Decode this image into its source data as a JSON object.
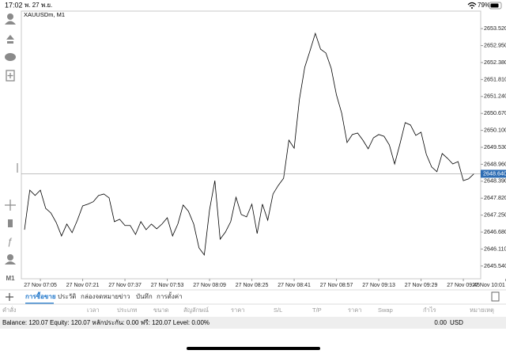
{
  "status_bar": {
    "time": "17:02",
    "date": "พ. 27 พ.ย.",
    "battery": "79%"
  },
  "left_toolbar": {
    "timeframe": "M1"
  },
  "chart_data": {
    "type": "line",
    "categories": [
      null,
      null,
      null,
      "27 Nov 07:05",
      null,
      null,
      null,
      null,
      null,
      null,
      null,
      "27 Nov 07:21",
      null,
      null,
      null,
      null,
      null,
      null,
      null,
      "27 Nov 07:37",
      null,
      null,
      null,
      null,
      null,
      null,
      null,
      "27 Nov 07:53",
      null,
      null,
      null,
      null,
      null,
      null,
      null,
      "27 Nov 08:09",
      null,
      null,
      null,
      null,
      null,
      null,
      null,
      "27 Nov 08:25",
      null,
      null,
      null,
      null,
      null,
      null,
      null,
      "27 Nov 08:41",
      null,
      null,
      null,
      null,
      null,
      null,
      null,
      "27 Nov 08:57",
      null,
      null,
      null,
      null,
      null,
      null,
      null,
      "27 Nov 09:13",
      null,
      null,
      null,
      null,
      null,
      null,
      null,
      "27 Nov 09:29",
      null,
      null,
      null,
      null,
      null,
      null,
      null,
      "27 Nov 09:45",
      null,
      null,
      null,
      null,
      null,
      null,
      null,
      "27 Nov 10:01"
    ],
    "series": [
      {
        "name": "XAUUSDm, M1",
        "color": "#000000",
        "values": [
          2646.76,
          2648.09,
          2647.91,
          2648.09,
          2647.48,
          2647.32,
          2647.0,
          2646.55,
          2646.95,
          2646.66,
          2647.08,
          2647.56,
          2647.62,
          2647.7,
          2647.91,
          2647.96,
          2647.83,
          2647.03,
          2647.11,
          2646.9,
          2646.9,
          2646.6,
          2647.03,
          2646.76,
          2646.95,
          2646.79,
          2646.95,
          2647.16,
          2646.55,
          2646.95,
          2647.59,
          2647.38,
          2646.95,
          2646.15,
          2645.91,
          2647.43,
          2648.41,
          2646.44,
          2646.68,
          2647.03,
          2647.85,
          2647.27,
          2647.19,
          2647.62,
          2646.63,
          2647.62,
          2647.08,
          2647.96,
          2648.25,
          2648.49,
          2649.77,
          2649.5,
          2651.15,
          2652.22,
          2652.78,
          2653.36,
          2652.83,
          2652.7,
          2652.19,
          2651.29,
          2650.67,
          2649.69,
          2649.96,
          2650.01,
          2649.77,
          2649.48,
          2649.85,
          2649.96,
          2649.9,
          2649.61,
          2648.97,
          2649.64,
          2650.36,
          2650.28,
          2649.93,
          2650.04,
          2649.29,
          2648.87,
          2648.71,
          2649.32,
          2649.16,
          2648.97,
          2649.05,
          2648.41,
          2648.47,
          2648.64,
          null,
          null,
          null,
          null,
          null,
          null
        ]
      }
    ],
    "ylim": [
      2645.11,
      2654.11
    ],
    "yticks": [
      {
        "value": 2653.52,
        "label": "2653.520"
      },
      {
        "value": 2652.95,
        "label": "2652.950"
      },
      {
        "value": 2652.38,
        "label": "2652.380"
      },
      {
        "value": 2651.81,
        "label": "2651.810"
      },
      {
        "value": 2651.24,
        "label": "2651.240"
      },
      {
        "value": 2650.67,
        "label": "2650.670"
      },
      {
        "value": 2650.1,
        "label": "2650.100"
      },
      {
        "value": 2649.53,
        "label": "2649.530"
      },
      {
        "value": 2648.96,
        "label": "2648.960"
      },
      {
        "value": 2648.39,
        "label": "2648.390"
      },
      {
        "value": 2647.82,
        "label": "2647.820"
      },
      {
        "value": 2647.25,
        "label": "2647.250"
      },
      {
        "value": 2646.68,
        "label": "2646.680"
      },
      {
        "value": 2646.11,
        "label": "2646.110"
      },
      {
        "value": 2645.54,
        "label": "2645.540"
      }
    ],
    "last_price": {
      "value": 2648.64,
      "label": "2648.640"
    },
    "last_price_color": "#2e6db4"
  },
  "tabs": [
    "การซื้อขาย",
    "ประวัติ",
    "กล่องจดหมาย",
    "ข่าว",
    "บันทึก",
    "การตั้งค่า"
  ],
  "columns": [
    "คำสั่ง",
    "เวลา",
    "ประเภท",
    "ขนาด",
    "สัญลักษณ์",
    "ราคา",
    "S/L",
    "T/P",
    "ราคา",
    "Swap",
    "กำไร",
    "หมายเหตุ"
  ],
  "account": {
    "summary": "Balance: 120.07 Equity: 120.07 หลักประกัน: 0.00 ฟรี: 120.07 Level: 0.00%",
    "profit": "0.00",
    "currency": "USD"
  }
}
